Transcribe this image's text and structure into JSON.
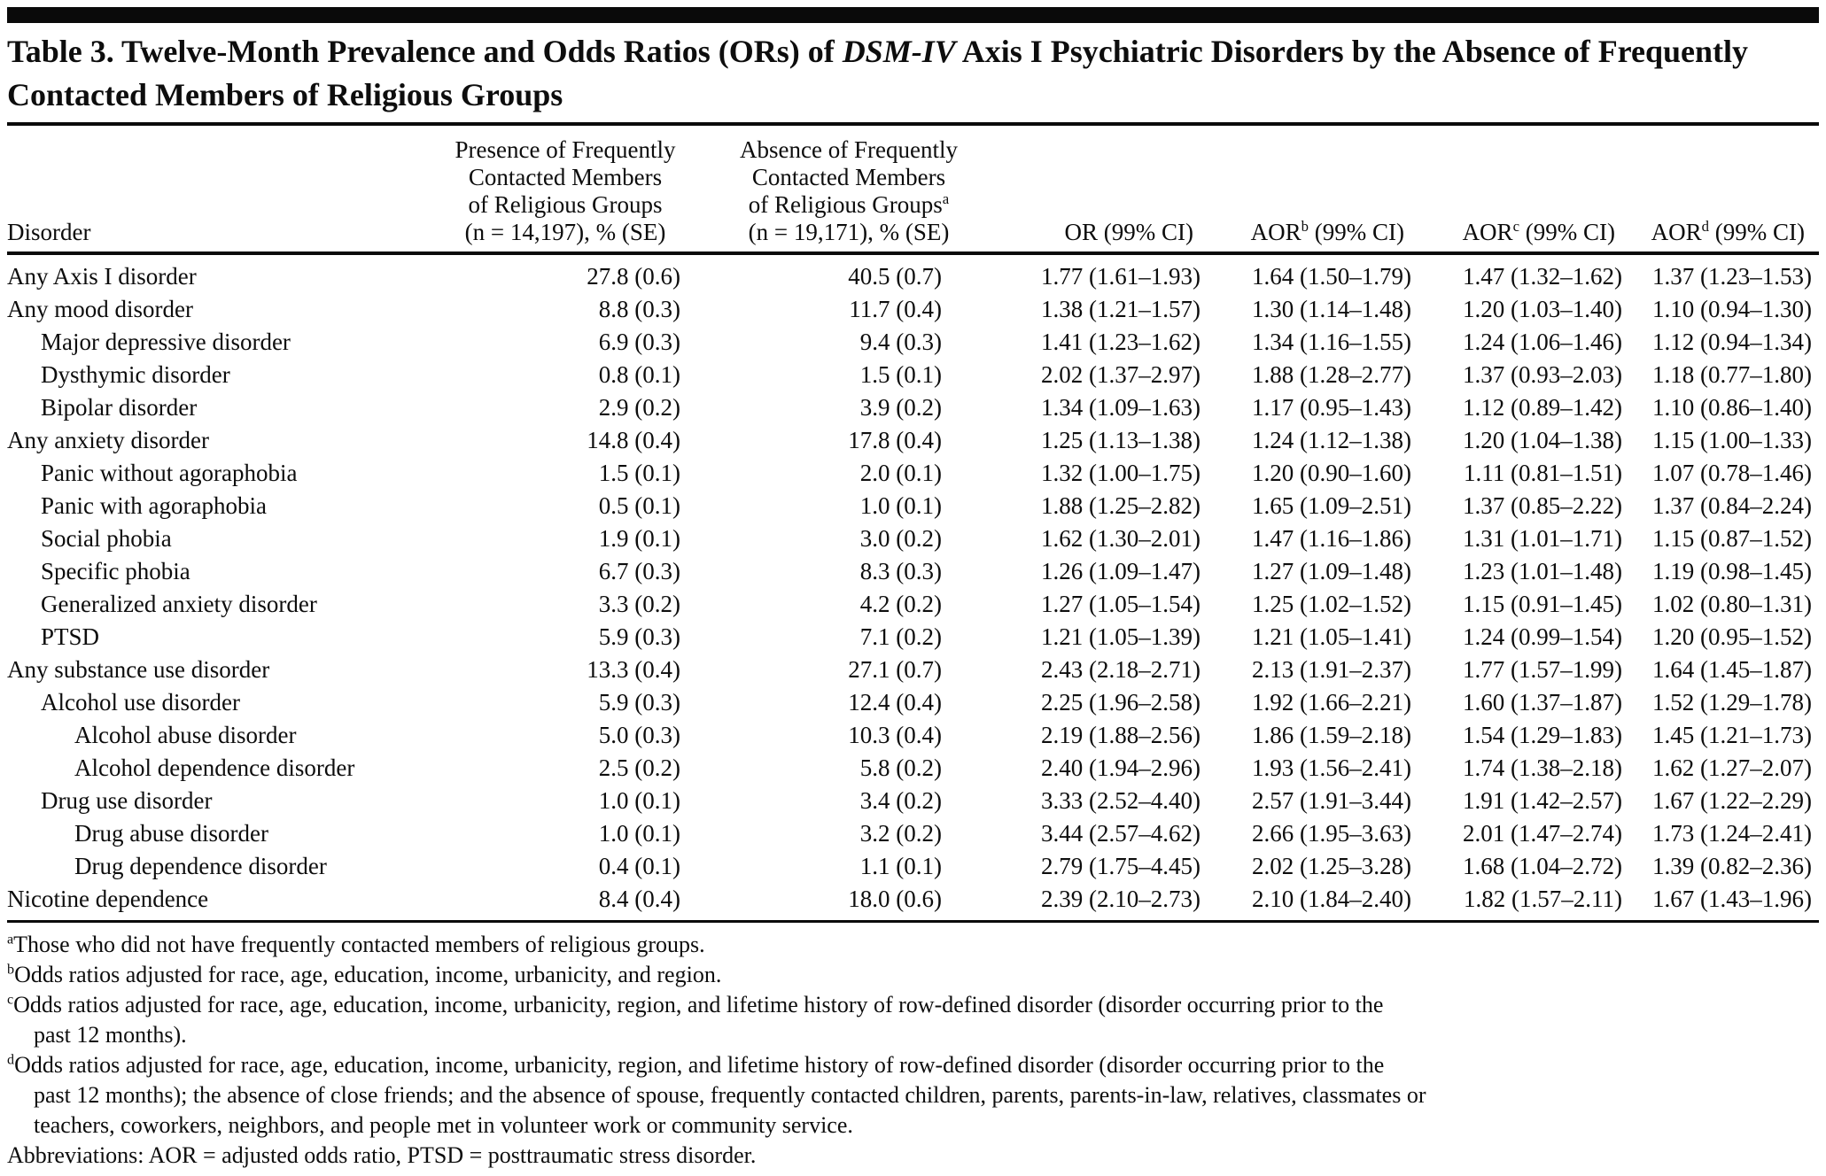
{
  "table": {
    "title": {
      "line1_prefix": "Table 3. Twelve-Month Prevalence and Odds Ratios (ORs) of ",
      "line1_italic": "DSM-IV",
      "line1_suffix": " Axis I Psychiatric Disorders by the Absence of Frequently",
      "line2": "Contacted Members of Religious Groups"
    },
    "columns": {
      "disorder": "Disorder",
      "presence": {
        "lines": [
          "Presence of Frequently",
          "Contacted Members",
          "of Religious Groups",
          "(n = 14,197), % (SE)"
        ]
      },
      "absence": {
        "line1": "Absence of Frequently",
        "line2": "Contacted Members",
        "line3": "of Religious Groups",
        "sup": "a",
        "line4": "(n = 19,171), % (SE)"
      },
      "or": "OR (99% CI)",
      "aor_b": {
        "prefix": "AOR",
        "sup": "b",
        "suffix": " (99% CI)"
      },
      "aor_c": {
        "prefix": "AOR",
        "sup": "c",
        "suffix": " (99% CI)"
      },
      "aor_d": {
        "prefix": "AOR",
        "sup": "d",
        "suffix": " (99% CI)"
      }
    },
    "rows": [
      {
        "indent": 0,
        "disorder": "Any Axis I disorder",
        "presence": "27.8 (0.6)",
        "absence": "40.5 (0.7)",
        "or": "1.77 (1.61–1.93)",
        "aor_b": "1.64 (1.50–1.79)",
        "aor_c": "1.47 (1.32–1.62)",
        "aor_d": "1.37 (1.23–1.53)"
      },
      {
        "indent": 0,
        "disorder": "Any mood disorder",
        "presence": "8.8 (0.3)",
        "absence": "11.7 (0.4)",
        "or": "1.38 (1.21–1.57)",
        "aor_b": "1.30 (1.14–1.48)",
        "aor_c": "1.20 (1.03–1.40)",
        "aor_d": "1.10 (0.94–1.30)"
      },
      {
        "indent": 1,
        "disorder": "Major depressive disorder",
        "presence": "6.9 (0.3)",
        "absence": "9.4 (0.3)",
        "or": "1.41 (1.23–1.62)",
        "aor_b": "1.34 (1.16–1.55)",
        "aor_c": "1.24 (1.06–1.46)",
        "aor_d": "1.12 (0.94–1.34)"
      },
      {
        "indent": 1,
        "disorder": "Dysthymic disorder",
        "presence": "0.8 (0.1)",
        "absence": "1.5 (0.1)",
        "or": "2.02 (1.37–2.97)",
        "aor_b": "1.88 (1.28–2.77)",
        "aor_c": "1.37 (0.93–2.03)",
        "aor_d": "1.18 (0.77–1.80)"
      },
      {
        "indent": 1,
        "disorder": "Bipolar disorder",
        "presence": "2.9 (0.2)",
        "absence": "3.9 (0.2)",
        "or": "1.34 (1.09–1.63)",
        "aor_b": "1.17 (0.95–1.43)",
        "aor_c": "1.12 (0.89–1.42)",
        "aor_d": "1.10 (0.86–1.40)"
      },
      {
        "indent": 0,
        "disorder": "Any anxiety disorder",
        "presence": "14.8 (0.4)",
        "absence": "17.8 (0.4)",
        "or": "1.25 (1.13–1.38)",
        "aor_b": "1.24 (1.12–1.38)",
        "aor_c": "1.20 (1.04–1.38)",
        "aor_d": "1.15 (1.00–1.33)"
      },
      {
        "indent": 1,
        "disorder": "Panic without agoraphobia",
        "presence": "1.5 (0.1)",
        "absence": "2.0 (0.1)",
        "or": "1.32 (1.00–1.75)",
        "aor_b": "1.20 (0.90–1.60)",
        "aor_c": "1.11 (0.81–1.51)",
        "aor_d": "1.07 (0.78–1.46)"
      },
      {
        "indent": 1,
        "disorder": "Panic with agoraphobia",
        "presence": "0.5 (0.1)",
        "absence": "1.0 (0.1)",
        "or": "1.88 (1.25–2.82)",
        "aor_b": "1.65 (1.09–2.51)",
        "aor_c": "1.37 (0.85–2.22)",
        "aor_d": "1.37 (0.84–2.24)"
      },
      {
        "indent": 1,
        "disorder": "Social phobia",
        "presence": "1.9 (0.1)",
        "absence": "3.0 (0.2)",
        "or": "1.62 (1.30–2.01)",
        "aor_b": "1.47 (1.16–1.86)",
        "aor_c": "1.31 (1.01–1.71)",
        "aor_d": "1.15 (0.87–1.52)"
      },
      {
        "indent": 1,
        "disorder": "Specific phobia",
        "presence": "6.7 (0.3)",
        "absence": "8.3 (0.3)",
        "or": "1.26 (1.09–1.47)",
        "aor_b": "1.27 (1.09–1.48)",
        "aor_c": "1.23 (1.01–1.48)",
        "aor_d": "1.19 (0.98–1.45)"
      },
      {
        "indent": 1,
        "disorder": "Generalized anxiety disorder",
        "presence": "3.3 (0.2)",
        "absence": "4.2 (0.2)",
        "or": "1.27 (1.05–1.54)",
        "aor_b": "1.25 (1.02–1.52)",
        "aor_c": "1.15 (0.91–1.45)",
        "aor_d": "1.02 (0.80–1.31)"
      },
      {
        "indent": 1,
        "disorder": "PTSD",
        "presence": "5.9 (0.3)",
        "absence": "7.1 (0.2)",
        "or": "1.21 (1.05–1.39)",
        "aor_b": "1.21 (1.05–1.41)",
        "aor_c": "1.24 (0.99–1.54)",
        "aor_d": "1.20 (0.95–1.52)"
      },
      {
        "indent": 0,
        "disorder": "Any substance use disorder",
        "presence": "13.3 (0.4)",
        "absence": "27.1 (0.7)",
        "or": "2.43 (2.18–2.71)",
        "aor_b": "2.13 (1.91–2.37)",
        "aor_c": "1.77 (1.57–1.99)",
        "aor_d": "1.64 (1.45–1.87)"
      },
      {
        "indent": 1,
        "disorder": "Alcohol use disorder",
        "presence": "5.9 (0.3)",
        "absence": "12.4 (0.4)",
        "or": "2.25 (1.96–2.58)",
        "aor_b": "1.92 (1.66–2.21)",
        "aor_c": "1.60 (1.37–1.87)",
        "aor_d": "1.52 (1.29–1.78)"
      },
      {
        "indent": 2,
        "disorder": "Alcohol abuse disorder",
        "presence": "5.0 (0.3)",
        "absence": "10.3 (0.4)",
        "or": "2.19 (1.88–2.56)",
        "aor_b": "1.86 (1.59–2.18)",
        "aor_c": "1.54 (1.29–1.83)",
        "aor_d": "1.45 (1.21–1.73)"
      },
      {
        "indent": 2,
        "disorder": "Alcohol dependence disorder",
        "presence": "2.5 (0.2)",
        "absence": "5.8 (0.2)",
        "or": "2.40 (1.94–2.96)",
        "aor_b": "1.93 (1.56–2.41)",
        "aor_c": "1.74 (1.38–2.18)",
        "aor_d": "1.62 (1.27–2.07)"
      },
      {
        "indent": 1,
        "disorder": "Drug use disorder",
        "presence": "1.0 (0.1)",
        "absence": "3.4 (0.2)",
        "or": "3.33 (2.52–4.40)",
        "aor_b": "2.57 (1.91–3.44)",
        "aor_c": "1.91 (1.42–2.57)",
        "aor_d": "1.67 (1.22–2.29)"
      },
      {
        "indent": 2,
        "disorder": "Drug abuse disorder",
        "presence": "1.0 (0.1)",
        "absence": "3.2 (0.2)",
        "or": "3.44 (2.57–4.62)",
        "aor_b": "2.66 (1.95–3.63)",
        "aor_c": "2.01 (1.47–2.74)",
        "aor_d": "1.73 (1.24–2.41)"
      },
      {
        "indent": 2,
        "disorder": "Drug dependence disorder",
        "presence": "0.4 (0.1)",
        "absence": "1.1 (0.1)",
        "or": "2.79 (1.75–4.45)",
        "aor_b": "2.02 (1.25–3.28)",
        "aor_c": "1.68 (1.04–2.72)",
        "aor_d": "1.39 (0.82–2.36)"
      },
      {
        "indent": 0,
        "disorder": "Nicotine dependence",
        "presence": "8.4 (0.4)",
        "absence": "18.0 (0.6)",
        "or": "2.39 (2.10–2.73)",
        "aor_b": "2.10 (1.84–2.40)",
        "aor_c": "1.82 (1.57–2.11)",
        "aor_d": "1.67 (1.43–1.96)"
      }
    ],
    "footnotes": [
      {
        "sup": "a",
        "lines": [
          "Those who did not have frequently contacted members of religious groups."
        ]
      },
      {
        "sup": "b",
        "lines": [
          "Odds ratios adjusted for race, age, education, income, urbanicity, and region."
        ]
      },
      {
        "sup": "c",
        "lines": [
          "Odds ratios adjusted for race, age, education, income, urbanicity, region, and lifetime history of row-defined disorder (disorder occurring prior to the",
          "past 12 months)."
        ]
      },
      {
        "sup": "d",
        "lines": [
          "Odds ratios adjusted for race, age, education, income, urbanicity, region, and lifetime history of row-defined disorder (disorder occurring prior to the",
          "past 12 months); the absence of close friends; and the absence of spouse, frequently contacted children, parents, parents-in-law, relatives, classmates or",
          "teachers, coworkers, neighbors, and people met in volunteer work or community service."
        ]
      },
      {
        "sup": "",
        "lines": [
          "Abbreviations: AOR = adjusted odds ratio, PTSD = posttraumatic stress disorder."
        ]
      }
    ]
  }
}
